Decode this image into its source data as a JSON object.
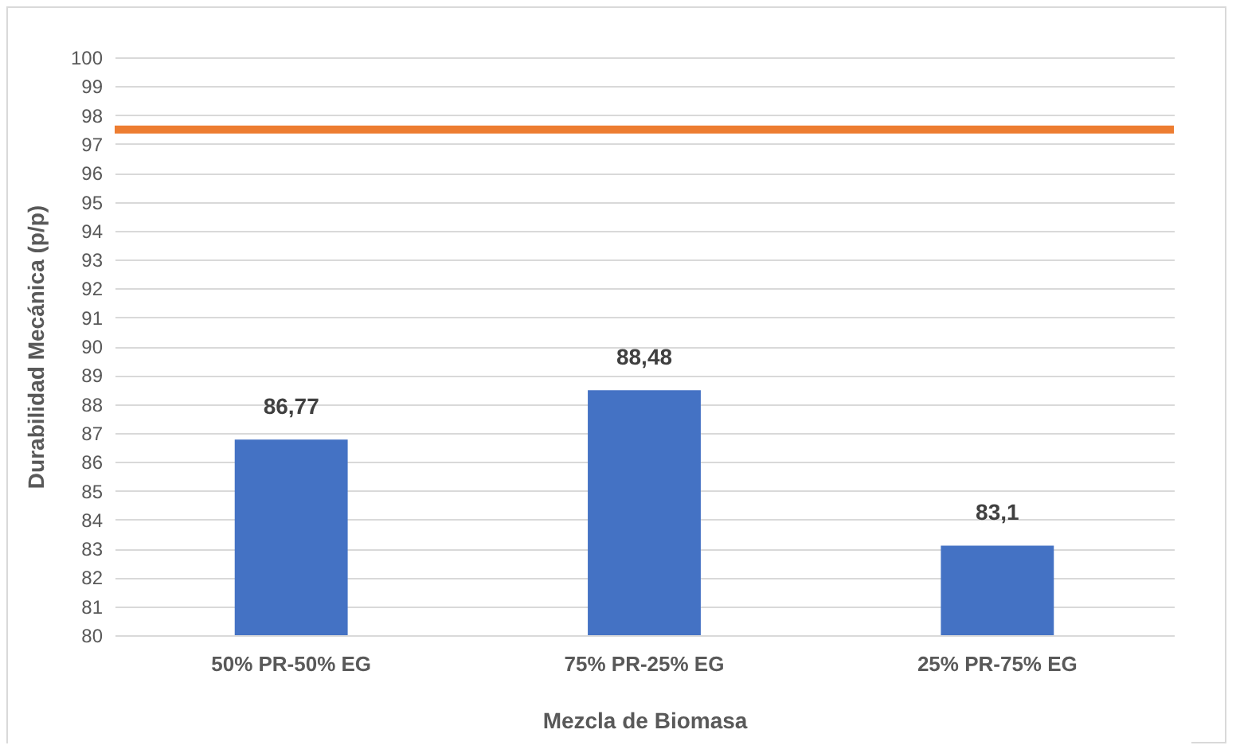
{
  "chart_data": {
    "type": "bar",
    "xlabel": "Mezcla de Biomasa",
    "ylabel": "Durabilidad Mecánica (p/p)",
    "categories": [
      "50% PR-50% EG",
      "75% PR-25% EG",
      "25% PR-75% EG"
    ],
    "values": [
      86.77,
      88.48,
      83.1
    ],
    "value_labels": [
      "86,77",
      "88,48",
      "83,1"
    ],
    "color": "#4472c4",
    "ylim": [
      80,
      100
    ],
    "yticks": [
      80,
      81,
      82,
      83,
      84,
      85,
      86,
      87,
      88,
      89,
      90,
      91,
      92,
      93,
      94,
      95,
      96,
      97,
      98,
      99,
      100
    ],
    "grid": "y",
    "ref_lines": [
      {
        "axis": "y",
        "value": 97.5,
        "color": "#ed7d31"
      }
    ]
  }
}
